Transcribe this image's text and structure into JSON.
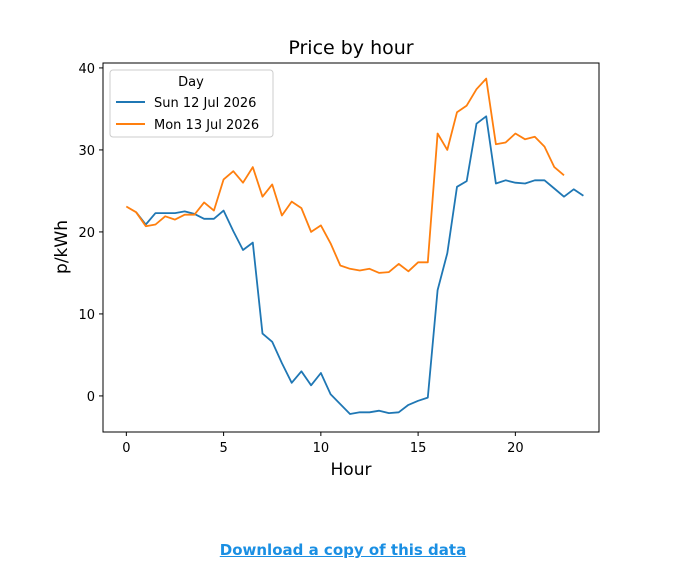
{
  "download_link": "Download a copy of this data",
  "chart_data": {
    "type": "line",
    "title": "Price by hour",
    "xlabel": "Hour",
    "ylabel": "p/kWh",
    "xlim": [
      -1.2,
      24.3
    ],
    "ylim": [
      -4.4,
      40.6
    ],
    "xticks": [
      0,
      5,
      10,
      15,
      20
    ],
    "yticks": [
      0,
      10,
      20,
      30,
      40
    ],
    "grid": false,
    "legend": {
      "title": "Day",
      "position": "top-left"
    },
    "series": [
      {
        "name": "Sun 12 Jul 2026",
        "color": "#1f77b4",
        "x": [
          0.5,
          1,
          1.5,
          2,
          2.5,
          3,
          3.5,
          4,
          4.5,
          5,
          5.5,
          6,
          6.5,
          7,
          7.5,
          8,
          8.5,
          9,
          9.5,
          10,
          10.5,
          11,
          11.5,
          12,
          12.5,
          13,
          13.5,
          14,
          14.5,
          15,
          15.5,
          16,
          16.5,
          17,
          17.5,
          18,
          18.5,
          19,
          19.5,
          20,
          20.5,
          21,
          21.5,
          22,
          22.5,
          23,
          23.5
        ],
        "values": [
          22.4,
          20.9,
          22.3,
          22.3,
          22.3,
          22.5,
          22.2,
          21.6,
          21.6,
          22.6,
          20.1,
          17.8,
          18.7,
          7.6,
          6.6,
          4.0,
          1.6,
          3.0,
          1.3,
          2.8,
          0.2,
          -1.0,
          -2.2,
          -2.0,
          -2.0,
          -1.8,
          -2.1,
          -2.0,
          -1.1,
          -0.6,
          -0.2,
          12.9,
          17.4,
          25.5,
          26.2,
          33.2,
          34.1,
          25.9,
          26.3,
          26.0,
          25.9,
          26.3,
          26.3,
          25.3,
          24.3,
          25.2,
          24.4
        ]
      },
      {
        "name": "Mon 13 Jul 2026",
        "color": "#ff7f0e",
        "x": [
          0,
          0.5,
          1,
          1.5,
          2,
          2.5,
          3,
          3.5,
          4,
          4.5,
          5,
          5.5,
          6,
          6.5,
          7,
          7.5,
          8,
          8.5,
          9,
          9.5,
          10,
          10.5,
          11,
          11.5,
          12,
          12.5,
          13,
          13.5,
          14,
          14.5,
          15,
          15.5,
          16,
          16.5,
          17,
          17.5,
          18,
          18.5,
          19,
          19.5,
          20,
          20.5,
          21,
          21.5,
          22,
          22.5
        ],
        "values": [
          23.1,
          22.4,
          20.7,
          20.9,
          21.9,
          21.5,
          22.1,
          22.1,
          23.6,
          22.6,
          26.4,
          27.4,
          26.0,
          27.9,
          24.3,
          25.8,
          22.0,
          23.7,
          22.9,
          20.0,
          20.8,
          18.6,
          15.9,
          15.5,
          15.3,
          15.5,
          15.0,
          15.1,
          16.1,
          15.2,
          16.3,
          16.3,
          32.0,
          30.0,
          34.6,
          35.4,
          37.4,
          38.7,
          30.7,
          30.9,
          32.0,
          31.3,
          31.6,
          30.4,
          27.9,
          26.9
        ]
      }
    ]
  }
}
